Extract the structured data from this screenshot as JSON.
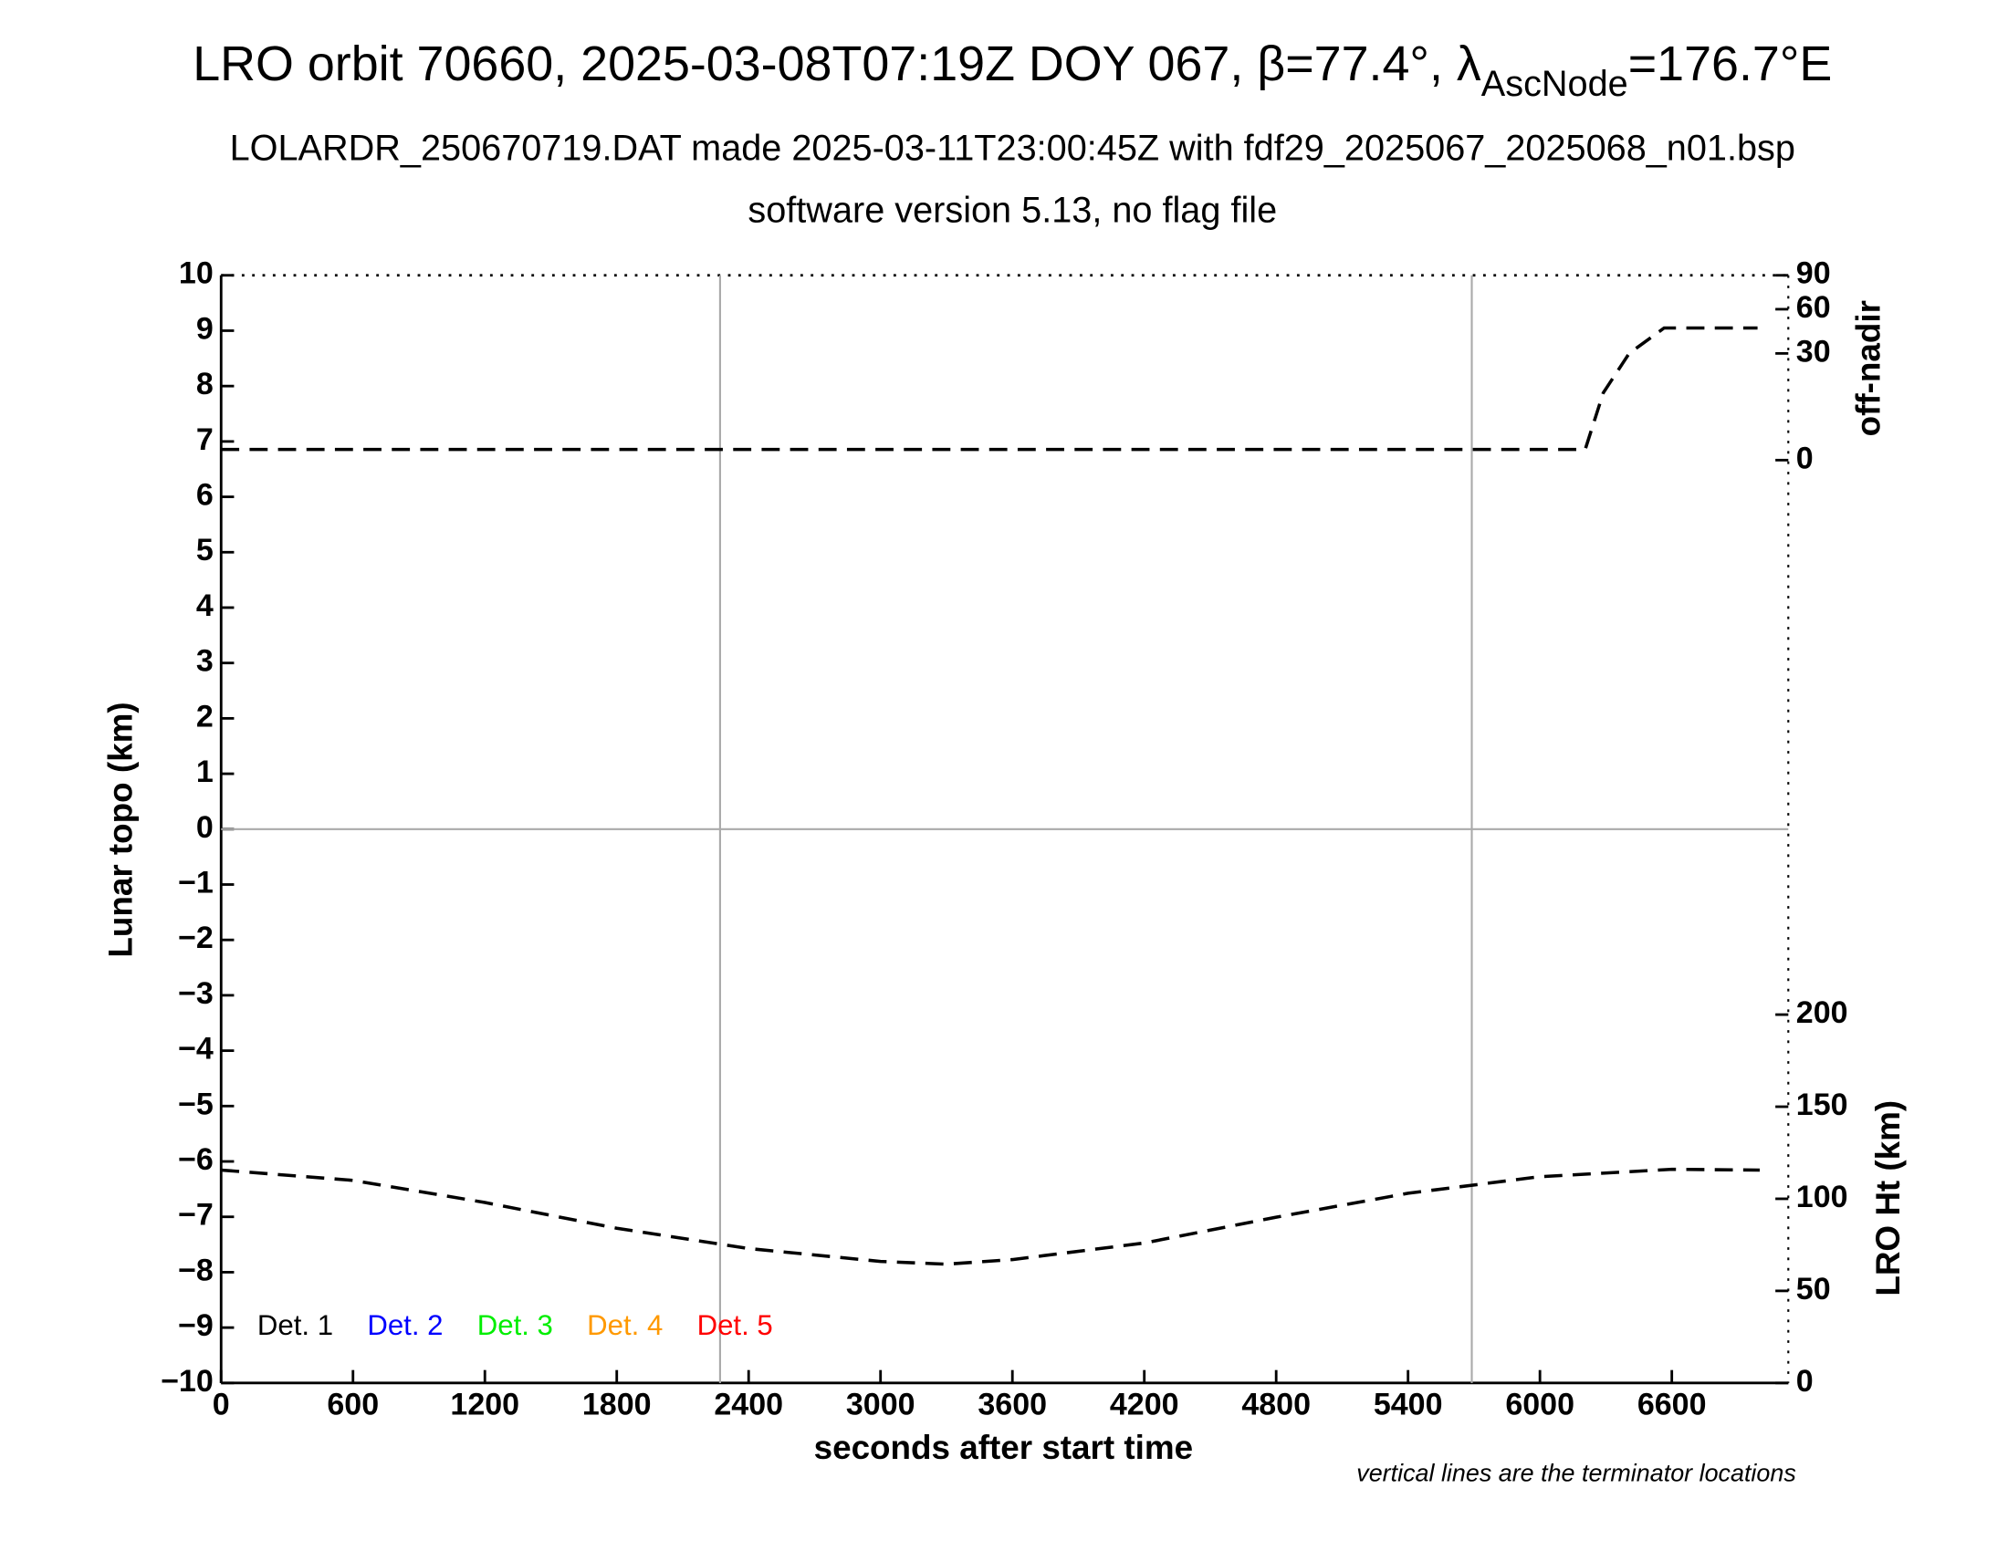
{
  "chart_data": {
    "type": "line",
    "title": {
      "main": "LRO orbit 70660, 2025-03-08T07:19Z DOY 067, β=77.4°, λ",
      "sub": "AscNode",
      "end": "=176.7°E"
    },
    "subtitle": "LOLARDR_250670719.DAT made 2025-03-11T23:00:45Z with fdf29_2025067_2025068_n01.bsp",
    "subtitle2": "software version 5.13, no flag file",
    "xlabel": "seconds after start time",
    "ylabel": "Lunar topo (km)",
    "annotation": "vertical lines are the terminator locations",
    "xlim": [
      0,
      7130
    ],
    "xticks": [
      0,
      600,
      1200,
      1800,
      2400,
      3000,
      3600,
      4200,
      4800,
      5400,
      6000,
      6600
    ],
    "ylim": [
      -10,
      10
    ],
    "yticks": [
      {
        "value": -10,
        "label": "−10"
      },
      {
        "value": -9,
        "label": "−9"
      },
      {
        "value": -8,
        "label": "−8"
      },
      {
        "value": -7,
        "label": "−7"
      },
      {
        "value": -6,
        "label": "−6"
      },
      {
        "value": -5,
        "label": "−5"
      },
      {
        "value": -4,
        "label": "−4"
      },
      {
        "value": -3,
        "label": "−3"
      },
      {
        "value": -2,
        "label": "−2"
      },
      {
        "value": -1,
        "label": "−1"
      },
      0,
      1,
      2,
      3,
      4,
      5,
      6,
      7,
      8,
      9,
      10
    ],
    "zero_line": true,
    "terminators": [
      2270,
      5690
    ],
    "offnadir_axis": {
      "label": "off-nadir",
      "lim": [
        0,
        90
      ],
      "ticks": [
        0,
        30,
        60,
        90
      ],
      "scale": "sqrt"
    },
    "height_axis": {
      "label": "LRO Ht (km)",
      "lim": [
        0,
        200
      ],
      "ticks": [
        0,
        50,
        100,
        150,
        200
      ]
    },
    "series": [
      {
        "axis": "offnadir",
        "color": "#000000",
        "dash": true,
        "x": [
          0,
          1200,
          2400,
          3600,
          4800,
          6000,
          6206,
          6288,
          6406,
          6565,
          6990
        ],
        "values": [
          0.3,
          0.3,
          0.3,
          0.3,
          0.3,
          0.3,
          0.3,
          11.9,
          30,
          46,
          46
        ]
      },
      {
        "axis": "height",
        "color": "#000000",
        "dash": true,
        "x": [
          0,
          600,
          1200,
          1800,
          2400,
          3000,
          3300,
          3600,
          4200,
          4800,
          5400,
          6000,
          6600,
          7000
        ],
        "values": [
          115.6,
          110,
          98,
          84,
          73,
          66,
          64.5,
          67,
          76,
          90,
          103,
          112,
          116,
          115.6
        ]
      }
    ],
    "legend": [
      {
        "name": "Det. 1",
        "color": "#000000"
      },
      {
        "name": "Det. 2",
        "color": "#0000ff"
      },
      {
        "name": "Det. 3",
        "color": "#00ee00"
      },
      {
        "name": "Det. 4",
        "color": "#ff9900"
      },
      {
        "name": "Det. 5",
        "color": "#ff0000"
      }
    ]
  }
}
